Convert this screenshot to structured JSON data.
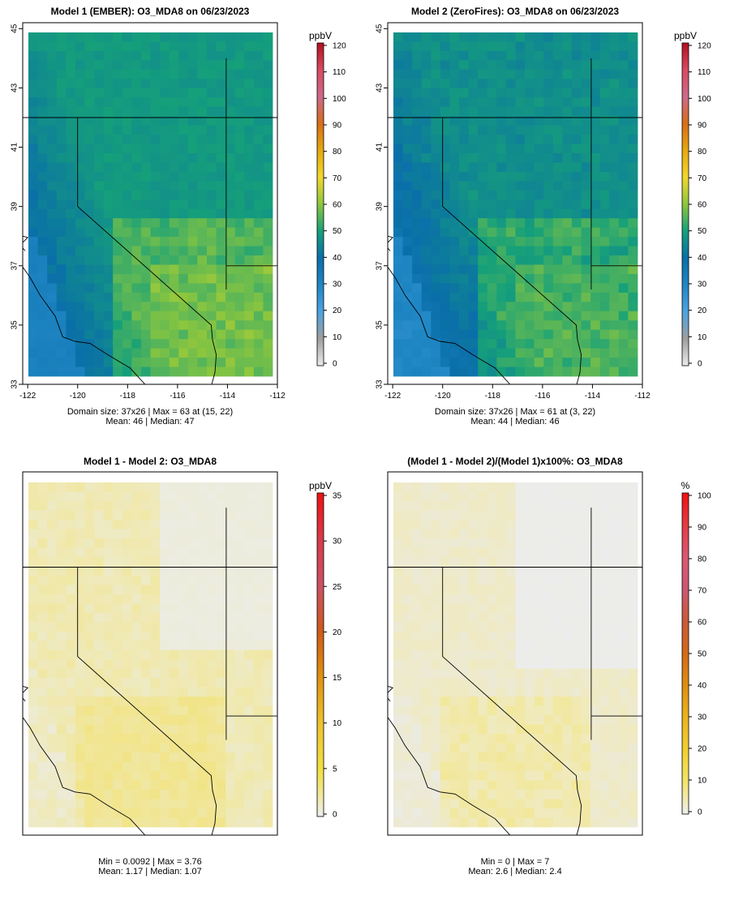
{
  "chart_data": [
    {
      "type": "heatmap",
      "title": "Model 1 (EMBER): O3_MDA8 on 06/23/2023",
      "legend_title": "ppbV",
      "colorbar_ticks": [
        "120",
        "110",
        "100",
        "90",
        "80",
        "70",
        "60",
        "50",
        "40",
        "30",
        "20",
        "10",
        "0"
      ],
      "colorbar_range": [
        0,
        120
      ],
      "x_ticks": [
        "-122",
        "-120",
        "-118",
        "-116",
        "-114",
        "-112"
      ],
      "y_ticks": [
        "33",
        "35",
        "37",
        "39",
        "41",
        "43",
        "45"
      ],
      "xlim": [
        -122,
        -112
      ],
      "ylim": [
        33,
        45
      ],
      "stats_line1": "Domain size: 37x26 | Max = 63 at (15, 22)",
      "stats_line2": "Mean: 46 |  Median: 47",
      "grid": [
        37,
        26
      ],
      "max": 63,
      "mean": 46,
      "median": 47
    },
    {
      "type": "heatmap",
      "title": "Model 2 (ZeroFires): O3_MDA8 on 06/23/2023",
      "legend_title": "ppbV",
      "colorbar_ticks": [
        "120",
        "110",
        "100",
        "90",
        "80",
        "70",
        "60",
        "50",
        "40",
        "30",
        "20",
        "10",
        "0"
      ],
      "colorbar_range": [
        0,
        120
      ],
      "x_ticks": [
        "-122",
        "-120",
        "-118",
        "-116",
        "-114",
        "-112"
      ],
      "y_ticks": [
        "33",
        "35",
        "37",
        "39",
        "41",
        "43",
        "45"
      ],
      "xlim": [
        -122,
        -112
      ],
      "ylim": [
        33,
        45
      ],
      "stats_line1": "Domain size: 37x26 | Max = 61 at (3, 22)",
      "stats_line2": "Mean: 44 |  Median: 46",
      "grid": [
        37,
        26
      ],
      "max": 61,
      "mean": 44,
      "median": 46
    },
    {
      "type": "heatmap",
      "title": "Model 1 - Model 2: O3_MDA8",
      "legend_title": "ppbV",
      "colorbar_ticks": [
        "35",
        "30",
        "25",
        "20",
        "15",
        "10",
        "5",
        "0"
      ],
      "colorbar_range": [
        0,
        35
      ],
      "stats_line1": "Min = 0.0092 | Max = 3.76",
      "stats_line2": "Mean: 1.17 |  Median: 1.07",
      "min": 0.0092,
      "max": 3.76,
      "mean": 1.17,
      "median": 1.07
    },
    {
      "type": "heatmap",
      "title": "(Model 1 - Model 2)/(Model 1)x100%: O3_MDA8",
      "legend_title": "%",
      "colorbar_ticks": [
        "100",
        "90",
        "80",
        "70",
        "60",
        "50",
        "40",
        "30",
        "20",
        "10",
        "0"
      ],
      "colorbar_range": [
        0,
        100
      ],
      "stats_line1": "Min = 0 | Max = 7",
      "stats_line2": "Mean: 2.6 |  Median: 2.4",
      "min": 0,
      "max": 7,
      "mean": 2.6,
      "median": 2.4
    }
  ]
}
